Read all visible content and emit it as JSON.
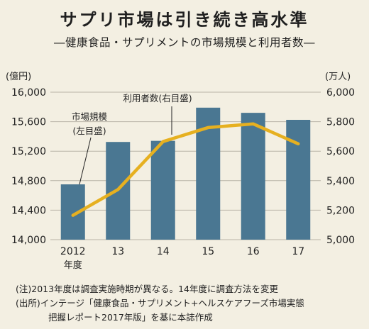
{
  "header": {
    "title": "サプリ市場は引き続き高水準",
    "subtitle": "―健康食品・サプリメントの市場規模と利用者数―"
  },
  "chart_data": {
    "type": "bar",
    "categories": [
      "2012",
      "13",
      "14",
      "15",
      "16",
      "17"
    ],
    "category_sublabel": "年度",
    "series": [
      {
        "name": "市場規模(左目盛)",
        "kind": "bar",
        "axis": "left",
        "values": [
          14750,
          15325,
          15340,
          15790,
          15720,
          15625
        ],
        "color": "#4a7792"
      },
      {
        "name": "利用者数(右目盛)",
        "kind": "line",
        "axis": "right",
        "values": [
          5165,
          5340,
          5665,
          5760,
          5785,
          5650
        ],
        "color": "#e6b020"
      }
    ],
    "y_left": {
      "unit": "(億円)",
      "range": [
        14000,
        16000
      ],
      "ticks": [
        "14,000",
        "14,400",
        "14,800",
        "15,200",
        "15,600",
        "16,000"
      ]
    },
    "y_right": {
      "unit": "(万人)",
      "range": [
        5000,
        6000
      ],
      "ticks": [
        "5,000",
        "5,200",
        "5,400",
        "5,600",
        "5,800",
        "6,000"
      ]
    },
    "annotations": {
      "bar_label_line1": "市場規模",
      "bar_label_line2": "(左目盛)",
      "line_label": "利用者数(右目盛)"
    }
  },
  "notes": {
    "note1": "(注)2013年度は調査実施時期が異なる。14年度に調査方法を変更",
    "source1": "(出所)インテージ「健康食品・サプリメント+ヘルスケアフーズ市場実態",
    "source2": "把握レポート2017年版」を基に本誌作成"
  },
  "colors": {
    "background": "#f3efe2",
    "bar": "#4a7792",
    "line": "#e6b020",
    "grid": "#b8b3a6"
  }
}
